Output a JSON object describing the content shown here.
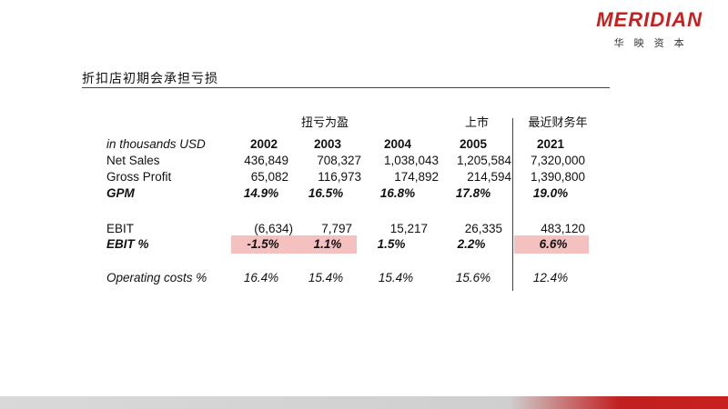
{
  "logo": {
    "word": "MERIDIAN",
    "subtitle": "华映资本",
    "color": "#c8201f"
  },
  "title": "折扣店初期会承担亏损",
  "headers": {
    "annotations": {
      "y2003": "扭亏为盈",
      "y2005": "上市",
      "y2021": "最近财务年"
    },
    "unit_label": "in thousands USD",
    "years": [
      "2002",
      "2003",
      "2004",
      "2005",
      "2021"
    ]
  },
  "rows": {
    "net_sales": {
      "label": "Net Sales",
      "values": [
        "436,849",
        "708,327",
        "1,038,043",
        "1,205,584",
        "7,320,000"
      ]
    },
    "gross_profit": {
      "label": "Gross Profit",
      "values": [
        "65,082",
        "116,973",
        "174,892",
        "214,594",
        "1,390,800"
      ]
    },
    "gpm": {
      "label": "GPM",
      "values": [
        "14.9%",
        "16.5%",
        "16.8%",
        "17.8%",
        "19.0%"
      ]
    },
    "ebit": {
      "label": "EBIT",
      "values": [
        "(6,634)",
        "7,797",
        "15,217",
        "26,335",
        "483,120"
      ]
    },
    "ebit_pct": {
      "label": "EBIT %",
      "values": [
        "-1.5%",
        "1.1%",
        "1.5%",
        "2.2%",
        "6.6%"
      ]
    },
    "opex": {
      "label": "Operating costs %",
      "values": [
        "16.4%",
        "15.4%",
        "15.4%",
        "15.6%",
        "12.4%"
      ]
    }
  },
  "highlight_color": "#f4c0c0"
}
